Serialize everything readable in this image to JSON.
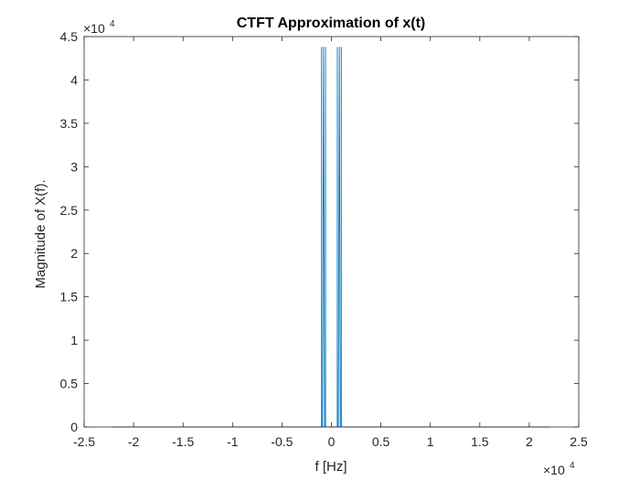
{
  "chart_data": {
    "type": "line",
    "title": "CTFT Approximation of x(t)",
    "xlabel": "f [Hz]",
    "ylabel": "Magnitude of X(f).",
    "xlim": [
      -25000,
      25000
    ],
    "ylim": [
      0,
      45000
    ],
    "grid": false,
    "x_ticks": [
      -25000,
      -20000,
      -15000,
      -10000,
      -5000,
      0,
      5000,
      10000,
      15000,
      20000,
      25000
    ],
    "x_tick_labels": [
      "-2.5",
      "-2",
      "-1.5",
      "-1",
      "-0.5",
      "0",
      "0.5",
      "1",
      "1.5",
      "2",
      "2.5"
    ],
    "y_ticks": [
      0,
      5000,
      10000,
      15000,
      20000,
      25000,
      30000,
      35000,
      40000,
      45000
    ],
    "y_tick_labels": [
      "0",
      "0.5",
      "1",
      "1.5",
      "2",
      "2.5",
      "3",
      "3.5",
      "4",
      "4.5"
    ],
    "x_exponent_label": {
      "base": "×10",
      "exp": "4"
    },
    "y_exponent_label": {
      "base": "×10",
      "exp": "4"
    },
    "series": [
      {
        "color": "#0072bd",
        "x": [
          -22050,
          -1100,
          -1000,
          -999,
          -990,
          -900,
          -800,
          -700,
          -600,
          -599,
          -590,
          -500,
          500,
          590,
          599,
          600,
          700,
          800,
          900,
          990,
          999,
          1000,
          1100,
          22050
        ],
        "y": [
          0,
          0,
          0,
          43800,
          0,
          0,
          43800,
          0,
          0,
          43800,
          0,
          0,
          0,
          0,
          43800,
          0,
          0,
          43800,
          0,
          0,
          43800,
          0,
          0,
          0
        ]
      }
    ]
  }
}
